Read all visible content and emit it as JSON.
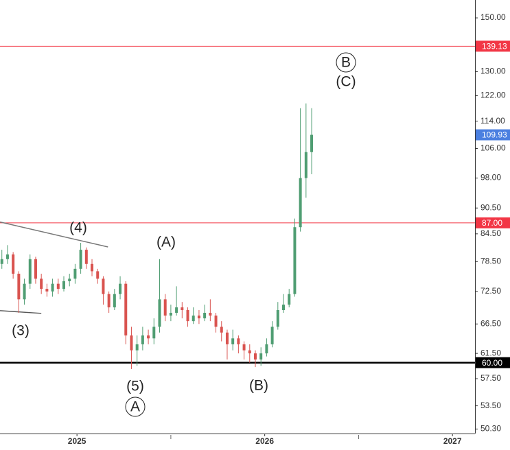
{
  "chart_data": {
    "type": "candlestick",
    "log_scale": true,
    "xlim": [
      2024.59,
      2027.12
    ],
    "xticks": [
      2025,
      2026,
      2027
    ],
    "x_minor_ticks": [
      2025.5,
      2026.5
    ],
    "ylim": [
      49.7,
      157.3
    ],
    "yticks": [
      {
        "value": 150,
        "label": "150.00"
      },
      {
        "value": 130,
        "label": "130.00"
      },
      {
        "value": 122,
        "label": "122.00"
      },
      {
        "value": 114,
        "label": "114.00"
      },
      {
        "value": 106,
        "label": "106.00"
      },
      {
        "value": 98,
        "label": "98.00"
      },
      {
        "value": 90.5,
        "label": "90.50"
      },
      {
        "value": 84.5,
        "label": "84.50"
      },
      {
        "value": 78.5,
        "label": "78.50"
      },
      {
        "value": 72.5,
        "label": "72.50"
      },
      {
        "value": 66.5,
        "label": "66.50"
      },
      {
        "value": 61.5,
        "label": "61.50"
      },
      {
        "value": 57.5,
        "label": "57.50"
      },
      {
        "value": 53.5,
        "label": "53.50"
      },
      {
        "value": 50.3,
        "label": "50.30"
      }
    ],
    "up_color": "#4f9d72",
    "down_color": "#d9534f",
    "last_price_color": "#4a7fe0",
    "x": [
      2024.6,
      2024.63,
      2024.66,
      2024.69,
      2024.72,
      2024.75,
      2024.78,
      2024.81,
      2024.84,
      2024.87,
      2024.9,
      2024.93,
      2024.96,
      2024.99,
      2025.02,
      2025.05,
      2025.08,
      2025.11,
      2025.14,
      2025.17,
      2025.2,
      2025.23,
      2025.26,
      2025.29,
      2025.32,
      2025.35,
      2025.38,
      2025.41,
      2025.44,
      2025.47,
      2025.5,
      2025.53,
      2025.56,
      2025.59,
      2025.62,
      2025.65,
      2025.68,
      2025.71,
      2025.74,
      2025.77,
      2025.8,
      2025.83,
      2025.86,
      2025.89,
      2025.92,
      2025.95,
      2025.98,
      2026.01,
      2026.04,
      2026.07,
      2026.1,
      2026.13,
      2026.16,
      2026.19,
      2026.22,
      2026.25
    ],
    "open": [
      78,
      79,
      80,
      76,
      71,
      74,
      79,
      75,
      73,
      72.5,
      74,
      73,
      74.5,
      75,
      77,
      81,
      78,
      76.5,
      75,
      72,
      69.5,
      72,
      74,
      64.5,
      62,
      63,
      64.5,
      64,
      66,
      71,
      68,
      68.5,
      69.5,
      69,
      67,
      68,
      67.5,
      68.5,
      68,
      66,
      65,
      63,
      64,
      63,
      62,
      61.5,
      60.5,
      61.5,
      63,
      66,
      69,
      70,
      72,
      86,
      98,
      105
    ],
    "high": [
      81,
      82,
      80.5,
      76.5,
      75,
      80,
      79.5,
      76,
      74,
      75,
      75,
      75.5,
      76,
      78,
      82.5,
      81.5,
      79,
      77,
      75.5,
      72.5,
      73,
      75.5,
      74.5,
      66,
      64.5,
      66,
      65.5,
      67.5,
      79,
      72,
      70,
      73.5,
      70.5,
      69.5,
      69.5,
      69,
      70,
      71,
      68.5,
      67,
      65.5,
      65.5,
      64.5,
      63.5,
      63,
      62,
      62.5,
      64,
      67,
      70.5,
      72,
      73,
      88,
      118,
      119.5,
      118
    ],
    "low": [
      77,
      78,
      75,
      68.5,
      70,
      73,
      74,
      72,
      71.5,
      71.5,
      72,
      72.5,
      73.5,
      74,
      76,
      77,
      75.5,
      74,
      70,
      68.5,
      69,
      71,
      63,
      59,
      59.5,
      62,
      63,
      63,
      65,
      67,
      67,
      68,
      67.5,
      66,
      66.5,
      66.5,
      67,
      67,
      65,
      63.5,
      60.5,
      62,
      61.5,
      60.5,
      60,
      59.3,
      59.5,
      61,
      62.5,
      65.5,
      68.5,
      69.5,
      71.5,
      85,
      93,
      99
    ],
    "close": [
      79,
      80,
      76,
      71,
      74,
      79,
      75,
      73,
      72.5,
      74,
      73,
      74.5,
      75,
      77,
      81,
      78,
      76.5,
      75,
      72,
      69.5,
      72,
      74,
      64.5,
      62,
      63,
      64.5,
      64,
      66,
      71,
      68,
      68.5,
      69.5,
      69,
      67,
      68,
      67.5,
      68.5,
      68,
      66,
      65,
      63,
      64,
      63,
      62,
      61.5,
      60.5,
      61.5,
      63,
      66,
      69,
      70,
      72,
      86,
      98,
      105,
      109.93
    ],
    "levels": [
      {
        "value": 139.13,
        "label": "139.13",
        "color": "#f23645"
      },
      {
        "value": 87,
        "label": "87.00",
        "color": "#f23645"
      },
      {
        "value": 60,
        "label": "60.00",
        "color": "#000000"
      }
    ],
    "trendlines": [
      {
        "x": [
          2024.59,
          2025.165
        ],
        "y": [
          87.2,
          81.6
        ],
        "color": "#777777"
      },
      {
        "x": [
          2024.59,
          2024.81
        ],
        "y": [
          68.9,
          68.4
        ],
        "color": "#555555"
      }
    ],
    "annotations": [
      {
        "text": "(4)",
        "circled": false
      },
      {
        "text": "(3)",
        "circled": false
      },
      {
        "text": "(A)",
        "circled": false
      },
      {
        "text": "(5)",
        "circled": false
      },
      {
        "text": "A",
        "circled": true
      },
      {
        "text": "(B)",
        "circled": false
      },
      {
        "text": "B",
        "circled": true
      },
      {
        "text": "(C)",
        "circled": false
      }
    ]
  }
}
